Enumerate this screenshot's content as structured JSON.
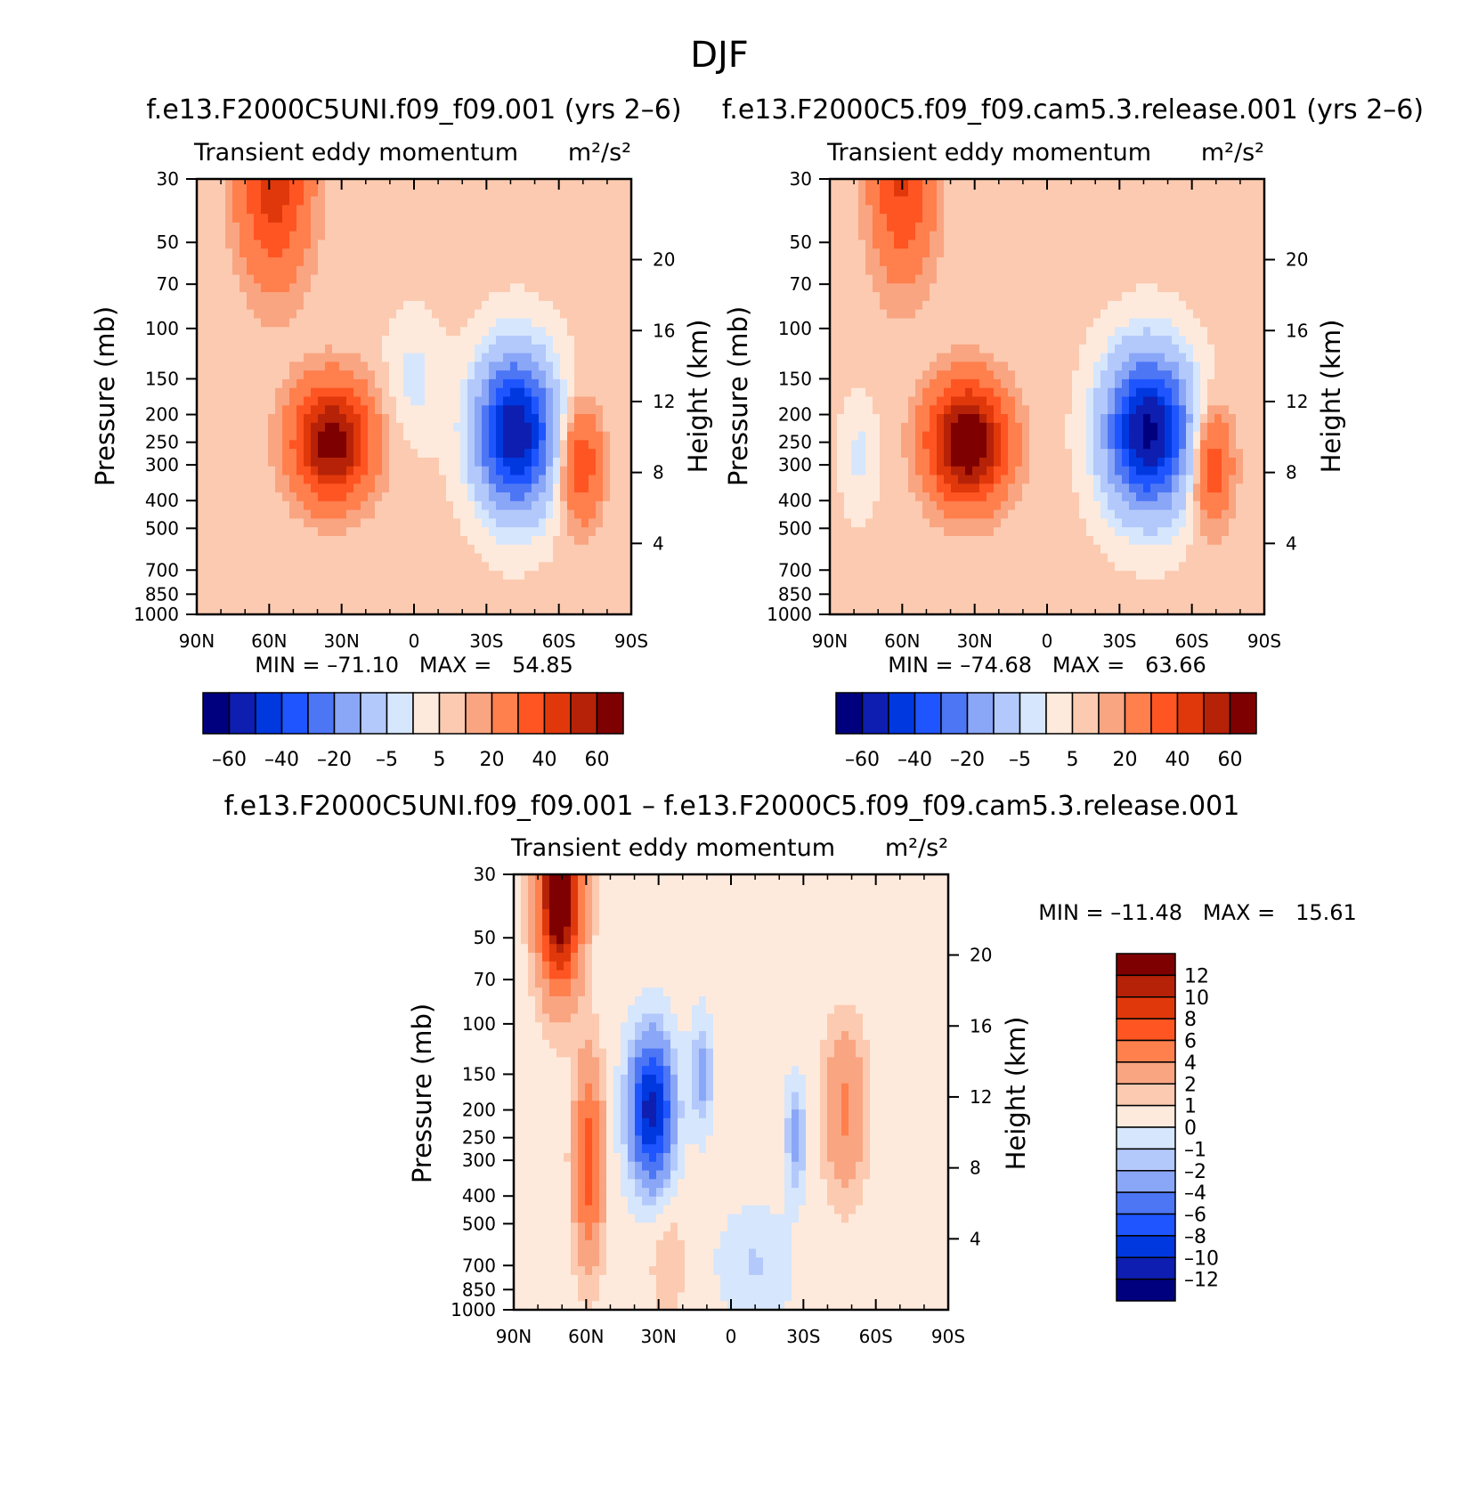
{
  "figure_title": "DJF",
  "colors": {
    "main_scale": [
      "#00007f",
      "#0d1eb0",
      "#0038e0",
      "#1e55ff",
      "#4d76f5",
      "#8aa6f7",
      "#b3c9fb",
      "#d6e6fc",
      "#feeadc",
      "#fccab0",
      "#f9a582",
      "#ff7f4d",
      "#fe5522",
      "#e0380b",
      "#b52208",
      "#7f0000"
    ],
    "diff_scale": [
      "#00007f",
      "#0d1eb0",
      "#0038e0",
      "#1e55ff",
      "#4d76f5",
      "#8aa6f7",
      "#b3c9fb",
      "#d6e6fc",
      "#feeadc",
      "#fccab0",
      "#f9a582",
      "#ff7f4d",
      "#fe5522",
      "#e0380b",
      "#b52208",
      "#7f0000"
    ]
  },
  "diff_title": "f.e13.F2000C5UNI.f09_f09.001 – f.e13.F2000C5.f09_f09.cam5.3.release.001",
  "chart_data": [
    {
      "type": "heatmap",
      "id": "panel1",
      "case_title": "f.e13.F2000C5UNI.f09_f09.001 (yrs 2–6)",
      "title": "Transient eddy momentum",
      "units": "m²/s²",
      "xlabel": "",
      "ylabel": "Pressure (mb)",
      "ylabel2": "Height (km)",
      "x_ticks": [
        "90N",
        "60N",
        "30N",
        "0",
        "30S",
        "60S",
        "90S"
      ],
      "y_ticks": [
        "30",
        "50",
        "70",
        "100",
        "150",
        "200",
        "250",
        "300",
        "400",
        "500",
        "700",
        "850",
        "1000"
      ],
      "y2_ticks": [
        "20",
        "16",
        "12",
        "8",
        "4"
      ],
      "min_max": "MIN = –71.10   MAX =   54.85",
      "contour_levels": [
        "–60",
        "–40",
        "–20",
        "–5",
        "5",
        "20",
        "40",
        "60"
      ],
      "blobs": [
        {
          "lat": 34,
          "p": 250,
          "value": 54.85,
          "wx": 11,
          "wl": 0.32
        },
        {
          "lat": 58,
          "p": 30,
          "value": 35,
          "wx": 10,
          "wl": 0.55
        },
        {
          "lat": -42,
          "p": 230,
          "value": -71.1,
          "wx": 11,
          "wl": 0.42
        },
        {
          "lat": -69,
          "p": 300,
          "value": 28,
          "wx": 6,
          "wl": 0.32
        },
        {
          "lat": 0,
          "p": 150,
          "value": -8,
          "wx": 8,
          "wl": 0.35
        }
      ]
    },
    {
      "type": "heatmap",
      "id": "panel2",
      "case_title": "f.e13.F2000C5.f09_f09.cam5.3.release.001 (yrs 2–6)",
      "title": "Transient eddy momentum",
      "units": "m²/s²",
      "xlabel": "",
      "ylabel": "Pressure (mb)",
      "ylabel2": "Height (km)",
      "x_ticks": [
        "90N",
        "60N",
        "30N",
        "0",
        "30S",
        "60S",
        "90S"
      ],
      "y_ticks": [
        "30",
        "50",
        "70",
        "100",
        "150",
        "200",
        "250",
        "300",
        "400",
        "500",
        "700",
        "850",
        "1000"
      ],
      "y2_ticks": [
        "20",
        "16",
        "12",
        "8",
        "4"
      ],
      "min_max": "MIN = –74.68   MAX =   63.66",
      "contour_levels": [
        "–60",
        "–40",
        "–20",
        "–5",
        "5",
        "20",
        "40",
        "60"
      ],
      "blobs": [
        {
          "lat": 33,
          "p": 250,
          "value": 63.66,
          "wx": 11,
          "wl": 0.32
        },
        {
          "lat": 60,
          "p": 30,
          "value": 30,
          "wx": 9,
          "wl": 0.55
        },
        {
          "lat": -42,
          "p": 230,
          "value": -74.68,
          "wx": 12,
          "wl": 0.42
        },
        {
          "lat": -68,
          "p": 300,
          "value": 28,
          "wx": 6,
          "wl": 0.32
        },
        {
          "lat": 78,
          "p": 280,
          "value": -8,
          "wx": 5,
          "wl": 0.3
        }
      ]
    },
    {
      "type": "heatmap",
      "id": "panel3",
      "title": "Transient eddy momentum",
      "units": "m²/s²",
      "xlabel": "",
      "ylabel": "Pressure (mb)",
      "ylabel2": "Height (km)",
      "x_ticks": [
        "90N",
        "60N",
        "30N",
        "0",
        "30S",
        "60S",
        "90S"
      ],
      "y_ticks": [
        "30",
        "50",
        "70",
        "100",
        "150",
        "200",
        "250",
        "300",
        "400",
        "500",
        "700",
        "850",
        "1000"
      ],
      "y2_ticks": [
        "20",
        "16",
        "12",
        "8",
        "4"
      ],
      "min_max": "MIN = –11.48   MAX =   15.61",
      "contour_levels": [
        "12",
        "10",
        "8",
        "6",
        "4",
        "2",
        "1",
        "0",
        "–1",
        "–2",
        "–4",
        "–6",
        "–8",
        "–10",
        "–12"
      ],
      "blobs": [
        {
          "lat": 71,
          "p": 35,
          "value": 15.61,
          "wx": 6,
          "wl": 0.5
        },
        {
          "lat": 59,
          "p": 300,
          "value": 7,
          "wx": 4,
          "wl": 0.55
        },
        {
          "lat": 33,
          "p": 200,
          "value": -11.48,
          "wx": 6,
          "wl": 0.38
        },
        {
          "lat": 12,
          "p": 150,
          "value": -3,
          "wx": 3,
          "wl": 0.3
        },
        {
          "lat": -27,
          "p": 250,
          "value": -3,
          "wx": 3,
          "wl": 0.3
        },
        {
          "lat": -47,
          "p": 200,
          "value": 4,
          "wx": 6,
          "wl": 0.45
        },
        {
          "lat": -10,
          "p": 700,
          "value": -1.5,
          "wx": 10,
          "wl": 0.3
        },
        {
          "lat": 26,
          "p": 700,
          "value": 1.5,
          "wx": 5,
          "wl": 0.3
        }
      ]
    }
  ]
}
